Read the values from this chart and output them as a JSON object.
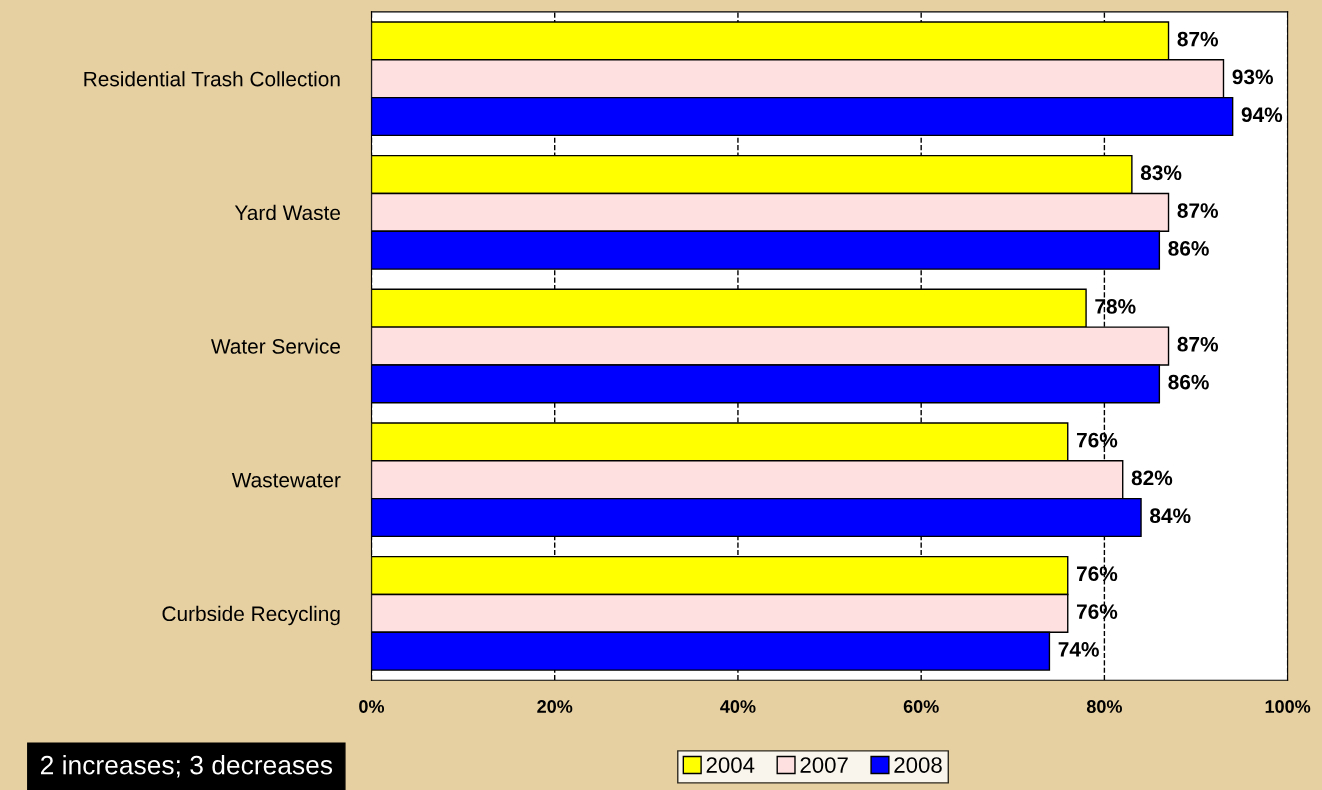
{
  "chart_data": {
    "type": "bar",
    "orientation": "horizontal",
    "categories": [
      "Residential Trash Collection",
      "Yard Waste",
      "Water Service",
      "Wastewater",
      "Curbside Recycling"
    ],
    "series": [
      {
        "name": "2004",
        "color": "#ffff00",
        "values": [
          87,
          83,
          78,
          76,
          76
        ],
        "value_labels": [
          "87%",
          "83%",
          "78%",
          "76%",
          "76%"
        ]
      },
      {
        "name": "2007",
        "color": "#ffe0e0",
        "values": [
          93,
          87,
          87,
          82,
          76
        ],
        "value_labels": [
          "93%",
          "87%",
          "87%",
          "82%",
          "76%"
        ]
      },
      {
        "name": "2008",
        "color": "#0000ff",
        "values": [
          94,
          86,
          86,
          84,
          74
        ],
        "value_labels": [
          "94%",
          "86%",
          "86%",
          "84%",
          "74%"
        ]
      }
    ],
    "xlim": [
      0,
      100
    ],
    "xticks": [
      {
        "value": 0,
        "label": "0%"
      },
      {
        "value": 20,
        "label": "20%"
      },
      {
        "value": 40,
        "label": "40%"
      },
      {
        "value": 60,
        "label": "60%"
      },
      {
        "value": 80,
        "label": "80%"
      },
      {
        "value": 100,
        "label": "100%"
      }
    ],
    "grid": "x",
    "line_style": "dashed",
    "legend": "bottom",
    "annotations": [
      "2 increases; 3 decreases"
    ]
  }
}
